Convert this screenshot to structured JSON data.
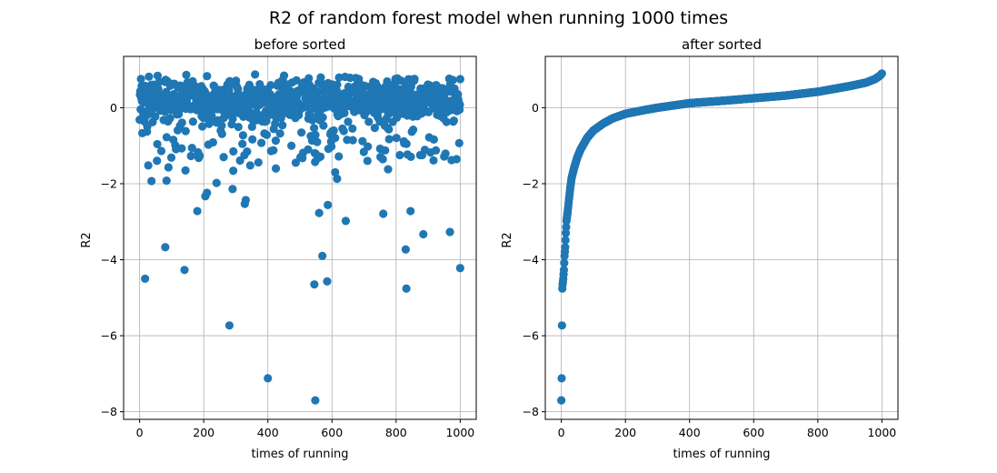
{
  "figure": {
    "title": "R2 of random forest model when running 1000 times"
  },
  "chart_data": [
    {
      "type": "scatter",
      "title": "before sorted",
      "xlabel": "times of running",
      "ylabel": "R2",
      "xlim": [
        -50,
        1050
      ],
      "ylim": [
        -8.2,
        1.35
      ],
      "xticks": [
        0,
        200,
        400,
        600,
        800,
        1000
      ],
      "yticks": [
        0,
        -2,
        -4,
        -6,
        -8
      ],
      "xtick_labels": [
        "0",
        "200",
        "400",
        "600",
        "800",
        "1000"
      ],
      "ytick_labels": [
        "0",
        "−2",
        "−4",
        "−6",
        "−8"
      ],
      "grid": true,
      "color": "#1f77b4",
      "outliers": [
        [
          17,
          -4.5
        ],
        [
          27,
          -1.52
        ],
        [
          37,
          -1.93
        ],
        [
          80,
          -3.67
        ],
        [
          84,
          -1.92
        ],
        [
          90,
          -1.57
        ],
        [
          140,
          -4.27
        ],
        [
          143,
          -1.65
        ],
        [
          180,
          -2.72
        ],
        [
          205,
          -2.33
        ],
        [
          210,
          -2.24
        ],
        [
          240,
          -1.98
        ],
        [
          262,
          -1.3
        ],
        [
          280,
          -5.73
        ],
        [
          290,
          -2.14
        ],
        [
          292,
          -1.66
        ],
        [
          328,
          -2.53
        ],
        [
          331,
          -2.43
        ],
        [
          345,
          -1.52
        ],
        [
          400,
          -7.12
        ],
        [
          425,
          -1.6
        ],
        [
          545,
          -4.65
        ],
        [
          548,
          -7.7
        ],
        [
          560,
          -2.77
        ],
        [
          570,
          -3.9
        ],
        [
          585,
          -4.57
        ],
        [
          587,
          -2.56
        ],
        [
          610,
          -1.7
        ],
        [
          616,
          -1.87
        ],
        [
          643,
          -2.98
        ],
        [
          760,
          -2.79
        ],
        [
          775,
          -1.62
        ],
        [
          830,
          -3.73
        ],
        [
          832,
          -4.76
        ],
        [
          845,
          -2.72
        ],
        [
          885,
          -3.33
        ],
        [
          968,
          -3.27
        ],
        [
          1000,
          -4.22
        ]
      ],
      "bulk": {
        "n": 962,
        "x_range": [
          0,
          1000
        ],
        "min": -1.45,
        "max": 0.9,
        "median": 0.22
      }
    },
    {
      "type": "scatter",
      "title": "after sorted",
      "xlabel": "times of running",
      "ylabel": "R2",
      "xlim": [
        -50,
        1050
      ],
      "ylim": [
        -8.2,
        1.35
      ],
      "xticks": [
        0,
        200,
        400,
        600,
        800,
        1000
      ],
      "yticks": [
        0,
        -2,
        -4,
        -6,
        -8
      ],
      "xtick_labels": [
        "0",
        "200",
        "400",
        "600",
        "800",
        "1000"
      ],
      "ytick_labels": [
        "0",
        "−2",
        "−4",
        "−6",
        "−8"
      ],
      "grid": true,
      "color": "#1f77b4",
      "sorted_curve": [
        [
          0,
          -7.7
        ],
        [
          1,
          -7.12
        ],
        [
          2,
          -5.73
        ],
        [
          3,
          -4.76
        ],
        [
          4,
          -4.65
        ],
        [
          6,
          -4.5
        ],
        [
          8,
          -4.27
        ],
        [
          10,
          -3.9
        ],
        [
          12,
          -3.67
        ],
        [
          14,
          -3.3
        ],
        [
          16,
          -2.98
        ],
        [
          20,
          -2.72
        ],
        [
          24,
          -2.4
        ],
        [
          28,
          -2.1
        ],
        [
          32,
          -1.85
        ],
        [
          40,
          -1.58
        ],
        [
          50,
          -1.3
        ],
        [
          60,
          -1.1
        ],
        [
          80,
          -0.8
        ],
        [
          100,
          -0.6
        ],
        [
          130,
          -0.42
        ],
        [
          160,
          -0.28
        ],
        [
          200,
          -0.16
        ],
        [
          260,
          -0.06
        ],
        [
          300,
          0.0
        ],
        [
          400,
          0.12
        ],
        [
          500,
          0.18
        ],
        [
          600,
          0.25
        ],
        [
          700,
          0.32
        ],
        [
          800,
          0.42
        ],
        [
          900,
          0.57
        ],
        [
          950,
          0.66
        ],
        [
          980,
          0.76
        ],
        [
          995,
          0.85
        ],
        [
          1000,
          0.9
        ]
      ]
    }
  ]
}
